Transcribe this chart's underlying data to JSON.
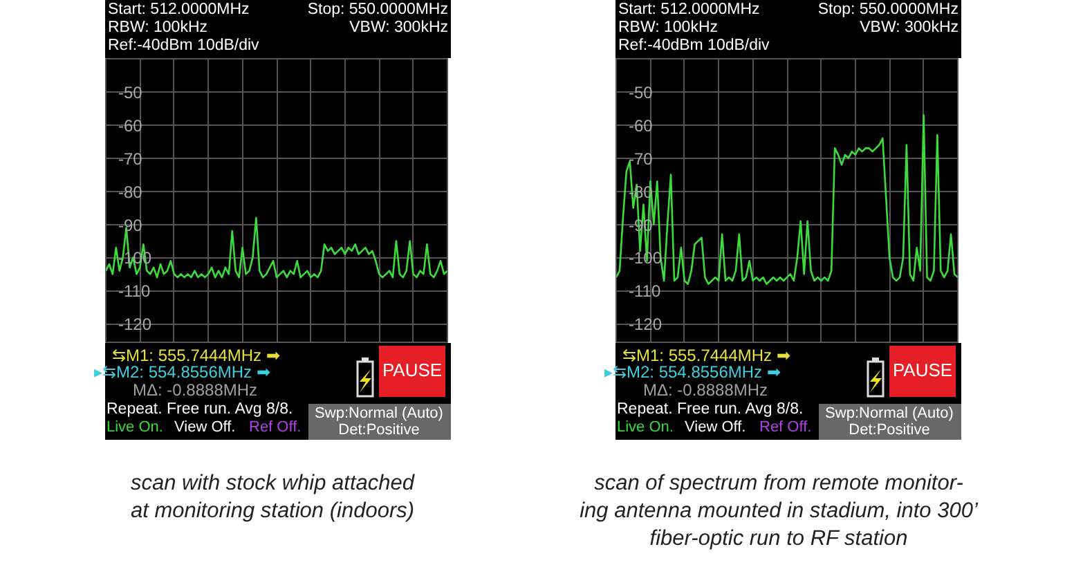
{
  "chart_data": [
    {
      "type": "line",
      "categories": [
        null,
        null,
        null,
        null,
        null,
        null,
        null,
        null,
        null,
        null,
        null,
        null,
        null,
        null,
        null,
        null,
        null,
        null,
        null,
        null,
        null,
        null,
        null,
        null,
        null,
        null,
        null,
        null,
        null,
        null,
        null,
        null,
        null,
        null,
        null,
        null,
        null,
        null,
        null,
        null,
        null,
        null,
        null,
        null,
        null,
        null,
        null,
        null,
        null,
        null,
        null,
        null,
        null,
        null,
        null,
        null,
        null,
        null,
        null,
        null,
        null,
        null,
        null,
        null,
        null,
        null,
        null,
        null,
        null,
        null,
        null,
        null,
        null,
        null,
        null,
        null,
        null,
        null,
        null,
        null,
        null,
        null,
        null,
        null,
        null,
        null,
        null,
        null,
        null,
        null,
        null,
        null,
        null,
        null,
        null,
        null,
        null,
        null,
        null,
        null,
        null
      ],
      "values": [
        -104,
        -102,
        -105,
        -97,
        -104,
        -100,
        -91,
        -103,
        -100,
        -105,
        -103,
        -96,
        -104,
        -105,
        -103,
        -106,
        -102,
        -105,
        -104,
        -101,
        -105,
        -106,
        -105,
        -106,
        -105,
        -106,
        -104,
        -106,
        -105,
        -106,
        -105,
        -103,
        -106,
        -104,
        -106,
        -103,
        -105,
        -92,
        -104,
        -106,
        -97,
        -105,
        -104,
        -100,
        -88,
        -104,
        -106,
        -105,
        -103,
        -101,
        -106,
        -105,
        -104,
        -106,
        -104,
        -105,
        -101,
        -106,
        -105,
        -104,
        -106,
        -105,
        -106,
        -104,
        -96,
        -98,
        -97,
        -99,
        -98,
        -97,
        -99,
        -97,
        -98,
        -96,
        -99,
        -98,
        -97,
        -99,
        -98,
        -101,
        -105,
        -106,
        -105,
        -104,
        -106,
        -95,
        -105,
        -106,
        -104,
        -95,
        -105,
        -106,
        -104,
        -105,
        -96,
        -105,
        -106,
        -104,
        -101,
        -105,
        -104
      ],
      "color": "#3ddc3d",
      "ylim": [
        -126,
        -40
      ],
      "yticks": [
        -50,
        -60,
        -70,
        -80,
        -90,
        -100,
        -110,
        -120
      ],
      "grid": true,
      "annotations": [
        "Start: 512.0000MHz",
        "Stop: 550.0000MHz",
        "RBW: 100kHz",
        "VBW: 300kHz",
        "Ref:-40dBm 10dB/div",
        "⇆M1: 555.7444MHz ➡",
        "▸⇆M2: 554.8556MHz ➡",
        "MΔ: -0.8888MHz",
        "Repeat. Free run. Avg 8/8.",
        "Live On.",
        "View Off.",
        "Ref Off.",
        "PAUSE",
        "Swp:Normal (Auto)",
        "Det:Positive",
        "scan with stock whip attached\nat monitoring station (indoors)"
      ]
    },
    {
      "type": "line",
      "categories": [
        null,
        null,
        null,
        null,
        null,
        null,
        null,
        null,
        null,
        null,
        null,
        null,
        null,
        null,
        null,
        null,
        null,
        null,
        null,
        null,
        null,
        null,
        null,
        null,
        null,
        null,
        null,
        null,
        null,
        null,
        null,
        null,
        null,
        null,
        null,
        null,
        null,
        null,
        null,
        null,
        null,
        null,
        null,
        null,
        null,
        null,
        null,
        null,
        null,
        null,
        null,
        null,
        null,
        null,
        null,
        null,
        null,
        null,
        null,
        null,
        null,
        null,
        null,
        null,
        null,
        null,
        null,
        null,
        null,
        null,
        null,
        null,
        null,
        null,
        null,
        null,
        null,
        null,
        null,
        null,
        null,
        null,
        null,
        null,
        null,
        null,
        null,
        null,
        null,
        null,
        null,
        null,
        null,
        null,
        null,
        null,
        null,
        null,
        null,
        null,
        null
      ],
      "values": [
        -106,
        -104,
        -88,
        -74,
        -71,
        -85,
        -78,
        -98,
        -84,
        -101,
        -77,
        -90,
        -77,
        -100,
        -107,
        -90,
        -75,
        -107,
        -106,
        -97,
        -107,
        -108,
        -104,
        -96,
        -95,
        -94,
        -106,
        -108,
        -107,
        -106,
        -107,
        -93,
        -107,
        -106,
        -107,
        -104,
        -93,
        -107,
        -106,
        -101,
        -107,
        -106,
        -107,
        -106,
        -108,
        -107,
        -106,
        -107,
        -106,
        -107,
        -106,
        -105,
        -107,
        -100,
        -89,
        -105,
        -89,
        -104,
        -107,
        -106,
        -107,
        -106,
        -107,
        -104,
        -67,
        -69,
        -72,
        -69,
        -70,
        -68,
        -69,
        -67,
        -68,
        -67,
        -67,
        -68,
        -67,
        -66,
        -64,
        -82,
        -100,
        -106,
        -107,
        -106,
        -100,
        -66,
        -105,
        -107,
        -97,
        -104,
        -57,
        -106,
        -107,
        -104,
        -63,
        -104,
        -106,
        -104,
        -93,
        -105,
        -106
      ],
      "color": "#3ddc3d",
      "ylim": [
        -126,
        -40
      ],
      "yticks": [
        -50,
        -60,
        -70,
        -80,
        -90,
        -100,
        -110,
        -120
      ],
      "grid": true,
      "annotations": [
        "Start: 512.0000MHz",
        "Stop: 550.0000MHz",
        "RBW: 100kHz",
        "VBW: 300kHz",
        "Ref:-40dBm 10dB/div",
        "⇆M1: 555.7444MHz ➡",
        "▸⇆M2: 554.8556MHz ➡",
        "MΔ: -0.8888MHz",
        "Repeat. Free run. Avg 8/8.",
        "Live On.",
        "View Off.",
        "Ref Off.",
        "PAUSE",
        "Swp:Normal (Auto)",
        "Det:Positive",
        "scan of spectrum from remote monitor-\ning antenna mounted in stadium, into 300’\nfiber-optic run to RF station"
      ]
    }
  ]
}
